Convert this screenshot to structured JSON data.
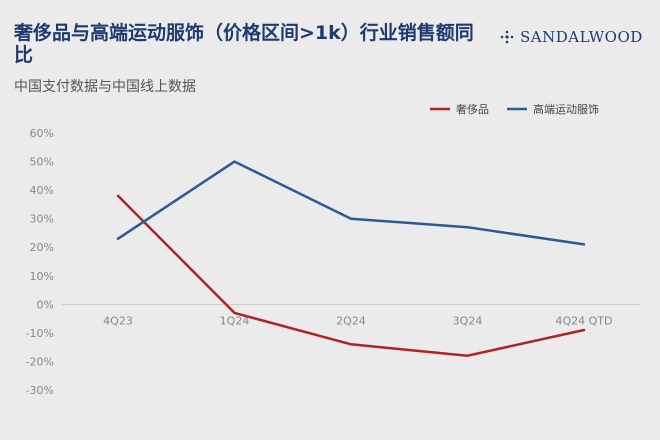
{
  "title": "奢侈品与高端运动服饰（价格区间>1k）行业销售额同比",
  "subtitle": "中国支付数据与中国线上数据",
  "brand": {
    "name": "SANDALWOOD",
    "logo_icon": "sandalwood-logo-icon"
  },
  "chart_data": {
    "type": "line",
    "categories": [
      "4Q23",
      "1Q24",
      "2Q24",
      "3Q24",
      "4Q24 QTD"
    ],
    "series": [
      {
        "name": "奢侈品",
        "color": "#b22222",
        "values": [
          38,
          -3,
          -14,
          -18,
          -9
        ]
      },
      {
        "name": "高端运动服饰",
        "color": "#2c5a94",
        "values": [
          23,
          50,
          30,
          27,
          21
        ]
      }
    ],
    "yticks": [
      "60%",
      "50%",
      "40%",
      "30%",
      "20%",
      "10%",
      "0%",
      "-10%",
      "-20%",
      "-30%"
    ],
    "ylim": [
      -30,
      60
    ],
    "grid": true,
    "legend": "top-right"
  }
}
